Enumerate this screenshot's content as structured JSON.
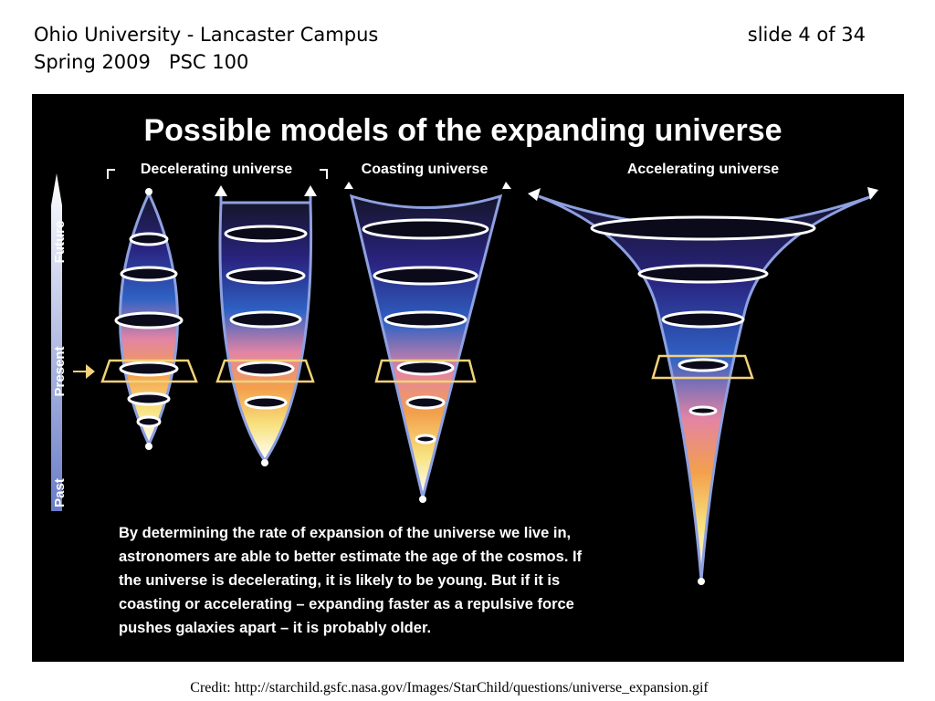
{
  "header": {
    "institution": "Ohio University - Lancaster Campus",
    "slide_number": "slide 4 of 34",
    "course": "Spring 2009   PSC 100"
  },
  "figure": {
    "title": "Possible models of the expanding universe",
    "models": [
      "Decelerating universe",
      "Coasting universe",
      "Accelerating universe"
    ],
    "time_axis": [
      "Future",
      "Present",
      "Past"
    ],
    "caption_lines": [
      "By determining the rate of expansion of the universe we live in,",
      "astronomers are able to better estimate the age of the cosmos. If",
      "the universe is decelerating, it is likely to be young. But if it is",
      "coasting or accelerating – expanding faster as a repulsive force",
      "pushes galaxies apart – it is probably older."
    ]
  },
  "credit": "Credit: http://starchild.gsfc.nasa.gov/Images/StarChild/questions/universe_expansion.gif"
}
